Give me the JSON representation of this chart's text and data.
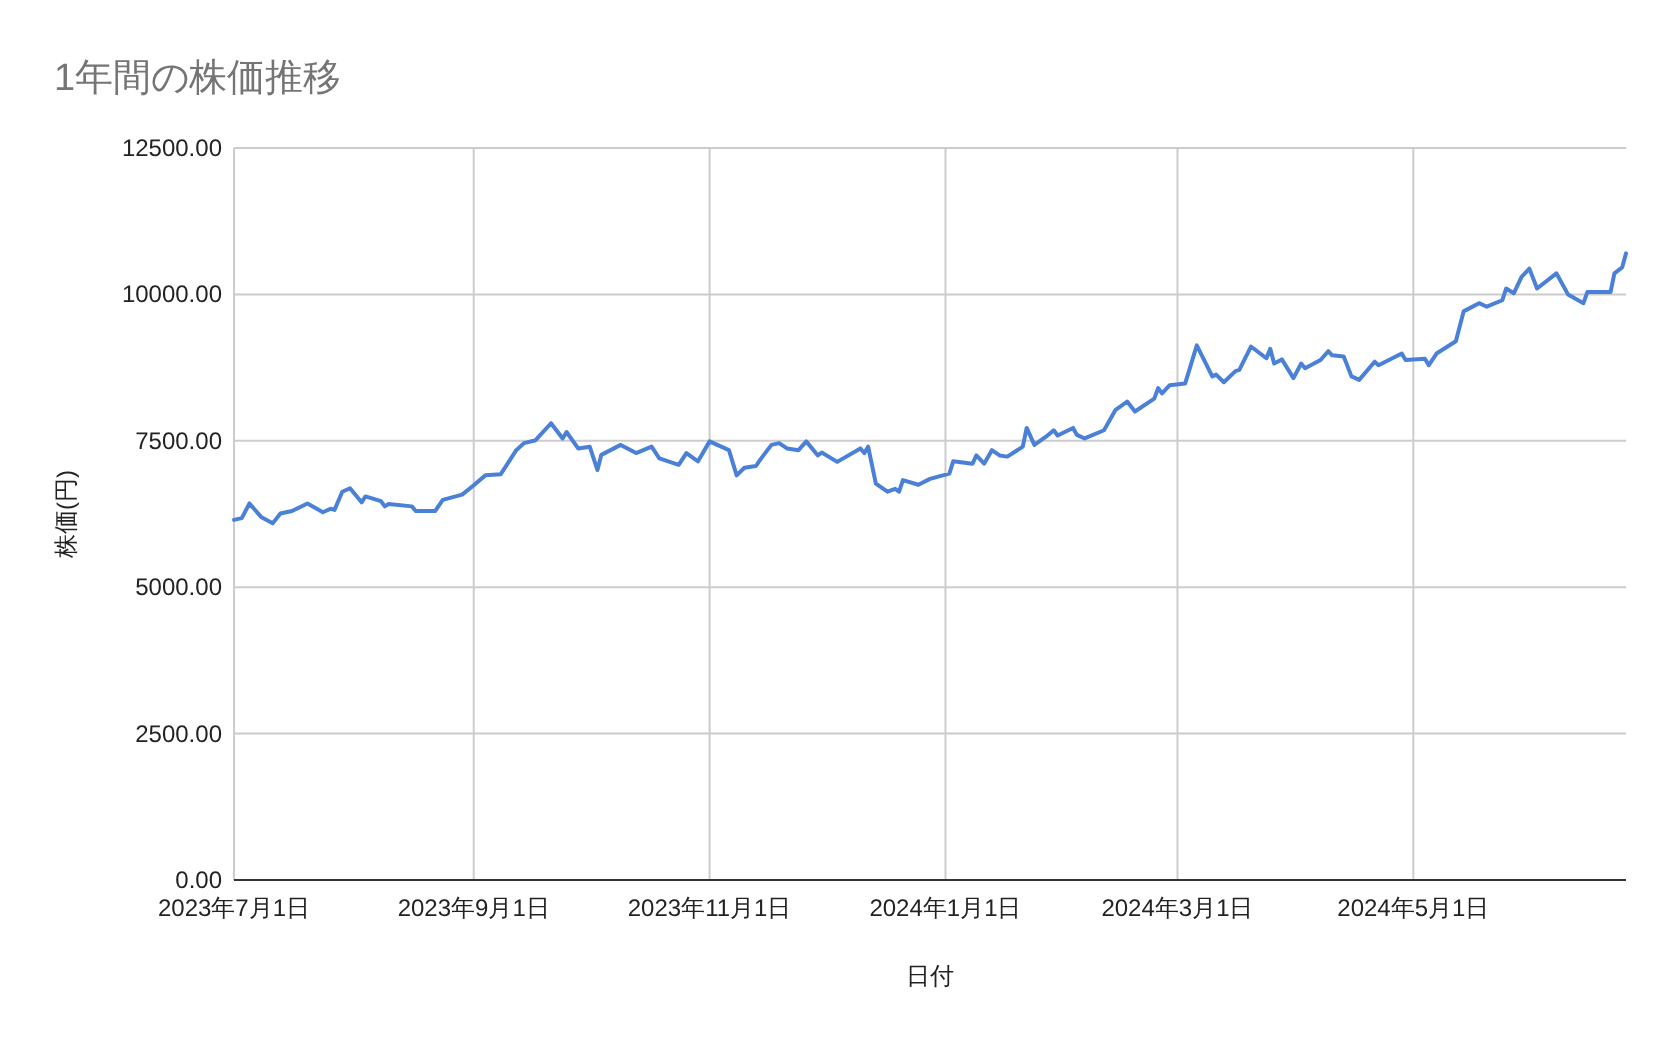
{
  "chart_data": {
    "type": "line",
    "title": "1年間の株価推移",
    "xlabel": "日付",
    "ylabel": "株価(円)",
    "xlim": [
      "2023-07-01",
      "2024-06-25"
    ],
    "xticks": [
      {
        "value": "2023-07-01",
        "label": "2023年7月1日"
      },
      {
        "value": "2023-09-01",
        "label": "2023年9月1日"
      },
      {
        "value": "2023-11-01",
        "label": "2023年11月1日"
      },
      {
        "value": "2024-01-01",
        "label": "2024年1月1日"
      },
      {
        "value": "2024-03-01",
        "label": "2024年3月1日"
      },
      {
        "value": "2024-05-01",
        "label": "2024年5月1日"
      }
    ],
    "ylim": [
      0,
      12500
    ],
    "yticks": [
      {
        "value": 0,
        "label": "0.00"
      },
      {
        "value": 2500,
        "label": "2500.00"
      },
      {
        "value": 5000,
        "label": "5000.00"
      },
      {
        "value": 7500,
        "label": "7500.00"
      },
      {
        "value": 10000,
        "label": "10000.00"
      },
      {
        "value": 12500,
        "label": "12500.00"
      }
    ],
    "grid": true,
    "marker": "none",
    "line_style": "solid",
    "x": [
      "2023-07-01",
      "2023-07-03",
      "2023-07-05",
      "2023-07-08",
      "2023-07-11",
      "2023-07-13",
      "2023-07-16",
      "2023-07-20",
      "2023-07-24",
      "2023-07-26",
      "2023-07-27",
      "2023-07-29",
      "2023-07-31",
      "2023-08-03",
      "2023-08-04",
      "2023-08-08",
      "2023-08-09",
      "2023-08-10",
      "2023-08-16",
      "2023-08-17",
      "2023-08-22",
      "2023-08-24",
      "2023-08-29",
      "2023-09-01",
      "2023-09-04",
      "2023-09-08",
      "2023-09-12",
      "2023-09-14",
      "2023-09-17",
      "2023-09-21",
      "2023-09-24",
      "2023-09-25",
      "2023-09-28",
      "2023-10-01",
      "2023-10-03",
      "2023-10-04",
      "2023-10-09",
      "2023-10-13",
      "2023-10-17",
      "2023-10-19",
      "2023-10-24",
      "2023-10-26",
      "2023-10-29",
      "2023-11-01",
      "2023-11-06",
      "2023-11-08",
      "2023-11-10",
      "2023-11-13",
      "2023-11-14",
      "2023-11-17",
      "2023-11-19",
      "2023-11-21",
      "2023-11-24",
      "2023-11-26",
      "2023-11-29",
      "2023-11-30",
      "2023-12-04",
      "2023-12-10",
      "2023-12-11",
      "2023-12-12",
      "2023-12-14",
      "2023-12-17",
      "2023-12-19",
      "2023-12-20",
      "2023-12-21",
      "2023-12-25",
      "2023-12-28",
      "2024-01-02",
      "2024-01-03",
      "2024-01-08",
      "2024-01-09",
      "2024-01-11",
      "2024-01-13",
      "2024-01-15",
      "2024-01-17",
      "2024-01-21",
      "2024-01-22",
      "2024-01-24",
      "2024-01-27",
      "2024-01-29",
      "2024-01-30",
      "2024-02-03",
      "2024-02-04",
      "2024-02-06",
      "2024-02-11",
      "2024-02-14",
      "2024-02-17",
      "2024-02-19",
      "2024-02-24",
      "2024-02-25",
      "2024-02-26",
      "2024-02-28",
      "2024-03-03",
      "2024-03-06",
      "2024-03-10",
      "2024-03-11",
      "2024-03-13",
      "2024-03-16",
      "2024-03-17",
      "2024-03-20",
      "2024-03-24",
      "2024-03-25",
      "2024-03-26",
      "2024-03-28",
      "2024-03-31",
      "2024-04-02",
      "2024-04-03",
      "2024-04-07",
      "2024-04-09",
      "2024-04-10",
      "2024-04-13",
      "2024-04-15",
      "2024-04-16",
      "2024-04-17",
      "2024-04-21",
      "2024-04-22",
      "2024-04-28",
      "2024-04-29",
      "2024-05-04",
      "2024-05-05",
      "2024-05-07",
      "2024-05-12",
      "2024-05-14",
      "2024-05-18",
      "2024-05-20",
      "2024-05-24",
      "2024-05-25",
      "2024-05-27",
      "2024-05-29",
      "2024-05-31",
      "2024-06-02",
      "2024-06-07",
      "2024-06-10",
      "2024-06-14",
      "2024-06-15",
      "2024-06-21",
      "2024-06-22",
      "2024-06-24",
      "2024-06-25"
    ],
    "series": [
      {
        "color": "#4a80d8",
        "values": [
          6150,
          6180,
          6430,
          6200,
          6090,
          6260,
          6300,
          6430,
          6280,
          6340,
          6320,
          6630,
          6690,
          6450,
          6550,
          6470,
          6380,
          6420,
          6380,
          6300,
          6300,
          6490,
          6580,
          6740,
          6910,
          6930,
          7340,
          7460,
          7510,
          7800,
          7540,
          7650,
          7370,
          7400,
          7000,
          7260,
          7430,
          7290,
          7400,
          7200,
          7090,
          7290,
          7150,
          7490,
          7340,
          6910,
          7040,
          7070,
          7170,
          7430,
          7460,
          7370,
          7340,
          7490,
          7250,
          7300,
          7140,
          7370,
          7290,
          7400,
          6770,
          6630,
          6680,
          6630,
          6830,
          6750,
          6850,
          6940,
          7150,
          7110,
          7250,
          7110,
          7340,
          7250,
          7230,
          7400,
          7720,
          7430,
          7570,
          7680,
          7590,
          7720,
          7600,
          7540,
          7680,
          8030,
          8170,
          8000,
          8220,
          8400,
          8310,
          8450,
          8480,
          9130,
          8600,
          8630,
          8500,
          8690,
          8710,
          9110,
          8910,
          9070,
          8820,
          8890,
          8570,
          8820,
          8740,
          8880,
          9030,
          8960,
          8940,
          8600,
          8570,
          8540,
          8850,
          8790,
          8990,
          8880,
          8900,
          8790,
          8990,
          9200,
          9710,
          9850,
          9790,
          9900,
          10100,
          10020,
          10300,
          10440,
          10100,
          10360,
          10000,
          9850,
          10040,
          10040,
          10360,
          10460,
          10700
        ]
      }
    ]
  }
}
